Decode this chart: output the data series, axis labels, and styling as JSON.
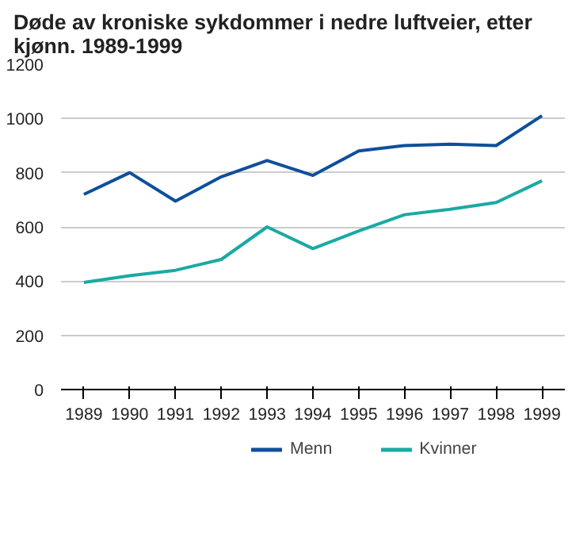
{
  "chart_data": {
    "type": "line",
    "title": "Døde av kroniske sykdommer i nedre luftveier, etter kjønn. 1989-1999",
    "categories": [
      "1989",
      "1990",
      "1991",
      "1992",
      "1993",
      "1994",
      "1995",
      "1996",
      "1997",
      "1998",
      "1999"
    ],
    "series": [
      {
        "name": "Menn",
        "color": "#0e4f9c",
        "values": [
          720,
          800,
          695,
          785,
          845,
          790,
          880,
          900,
          905,
          900,
          1010
        ]
      },
      {
        "name": "Kvinner",
        "color": "#19aaa3",
        "values": [
          395,
          420,
          440,
          480,
          600,
          520,
          585,
          645,
          665,
          690,
          770
        ]
      }
    ],
    "ylim": [
      0,
      1200
    ],
    "yticks": [
      0,
      200,
      400,
      600,
      800,
      1000,
      1200
    ],
    "grid": "y",
    "legend": "bottom",
    "line_style": "solid",
    "marker": "none"
  }
}
